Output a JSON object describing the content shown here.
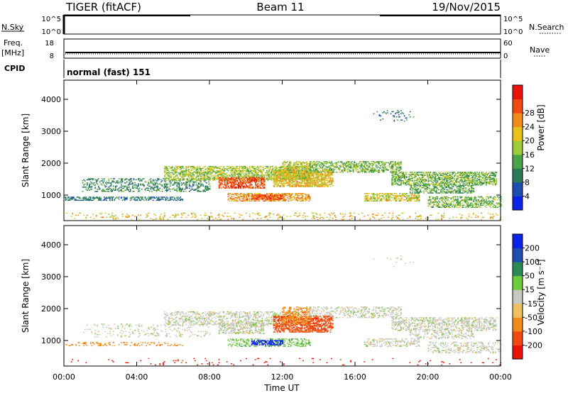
{
  "header": {
    "radar": "TIGER (fitACF)",
    "beam": "Beam 11",
    "date": "19/Nov/2015"
  },
  "top_panels": {
    "nsky_label": "N.Sky",
    "nsearch_label": "N.Search",
    "nsky_ticks": [
      "10^5",
      "10^0"
    ],
    "nsearch_ticks": [
      "10^5",
      "10^0"
    ],
    "freq_label_1": "Freq.",
    "freq_label_2": "[MHz]",
    "freq_ticks": [
      "18",
      "8"
    ],
    "nave_label": "Nave",
    "nave_ticks": [
      "60",
      "0"
    ],
    "cpid_label": "CPID",
    "cpid_text": "normal (fast) 151"
  },
  "colors": {
    "power": [
      "#0b24e8",
      "#1e4fb0",
      "#2c7a55",
      "#4aa24a",
      "#9ccc3a",
      "#e8c21a",
      "#f08a18",
      "#f04a10",
      "#e81408"
    ],
    "velocity": [
      "#e81408",
      "#f04a10",
      "#f08a18",
      "#f0c060",
      "#c8c8c0",
      "#6ccc3a",
      "#2c8a55",
      "#1e4fb0",
      "#0b24e8"
    ]
  },
  "chart_data": [
    {
      "type": "heatmap",
      "quantity": "power",
      "xlabel": "",
      "ylabel": "Slant Range [km]",
      "x_range_hours": [
        0,
        24
      ],
      "ylim": [
        200,
        4600
      ],
      "yticks": [
        "1000",
        "2000",
        "3000",
        "4000"
      ],
      "colorbar_label": "Power [dB]",
      "colorbar_ticks": [
        "4",
        "8",
        "12",
        "16",
        "20",
        "24",
        "28"
      ],
      "colorbar_range": [
        0,
        32
      ],
      "grid": false
    },
    {
      "type": "heatmap",
      "quantity": "velocity",
      "xlabel": "Time UT",
      "ylabel": "Slant Range [km]",
      "x_range_hours": [
        0,
        24
      ],
      "xticks": [
        "00:00",
        "04:00",
        "08:00",
        "12:00",
        "16:00",
        "20:00",
        "00:00"
      ],
      "ylim": [
        200,
        4600
      ],
      "yticks": [
        "1000",
        "2000",
        "3000",
        "4000"
      ],
      "colorbar_label": "Velocity [m s⁻¹]",
      "colorbar_ticks": [
        "-200",
        "-100",
        "-50",
        "-15",
        "15",
        "50",
        "100",
        "200"
      ],
      "grid": false
    }
  ],
  "scatter_regions": [
    {
      "t0": 0.0,
      "t1": 24.0,
      "r0": 220,
      "r1": 420,
      "p": 20,
      "pd": 0.12,
      "v": 0,
      "vd": 0.18
    },
    {
      "t0": 0.0,
      "t1": 6.5,
      "r0": 820,
      "r1": 950,
      "p": 8,
      "pd": 0.55,
      "v": 2,
      "vd": 0.3
    },
    {
      "t0": 1.0,
      "t1": 8.0,
      "r0": 1100,
      "r1": 1500,
      "p": 10,
      "pd": 0.35,
      "v": 4,
      "vd": 0.25
    },
    {
      "t0": 5.5,
      "t1": 13.5,
      "r0": 1450,
      "r1": 1900,
      "p": 16,
      "pd": 0.6,
      "v": 4,
      "vd": 0.6
    },
    {
      "t0": 8.5,
      "t1": 11.0,
      "r0": 1200,
      "r1": 1550,
      "p": 27,
      "pd": 0.7,
      "v": 4,
      "vd": 0.6
    },
    {
      "t0": 9.0,
      "t1": 13.5,
      "r0": 800,
      "r1": 1050,
      "p": 22,
      "pd": 0.6,
      "v": 5,
      "vd": 0.6
    },
    {
      "t0": 10.3,
      "t1": 12.0,
      "r0": 850,
      "r1": 1000,
      "p": 28,
      "pd": 0.75,
      "v": 8,
      "vd": 0.8
    },
    {
      "t0": 11.5,
      "t1": 14.8,
      "r0": 1250,
      "r1": 1750,
      "p": 20,
      "pd": 0.75,
      "v": 1,
      "vd": 0.8
    },
    {
      "t0": 12.0,
      "t1": 13.5,
      "r0": 1500,
      "r1": 2050,
      "p": 18,
      "pd": 0.6,
      "v": 2,
      "vd": 0.7
    },
    {
      "t0": 13.5,
      "t1": 18.5,
      "r0": 1700,
      "r1": 2050,
      "p": 14,
      "pd": 0.55,
      "v": 4,
      "vd": 0.55
    },
    {
      "t0": 16.5,
      "t1": 19.5,
      "r0": 800,
      "r1": 1050,
      "p": 18,
      "pd": 0.6,
      "v": 4,
      "vd": 0.6
    },
    {
      "t0": 18.0,
      "t1": 23.8,
      "r0": 1300,
      "r1": 1700,
      "p": 14,
      "pd": 0.65,
      "v": 4,
      "vd": 0.6
    },
    {
      "t0": 19.0,
      "t1": 22.5,
      "r0": 1050,
      "r1": 1300,
      "p": 12,
      "pd": 0.5,
      "v": 4,
      "vd": 0.5
    },
    {
      "t0": 20.0,
      "t1": 24.0,
      "r0": 600,
      "r1": 950,
      "p": 14,
      "pd": 0.5,
      "v": 4,
      "vd": 0.5
    },
    {
      "t0": 17.0,
      "t1": 19.2,
      "r0": 3300,
      "r1": 3650,
      "p": 8,
      "pd": 0.15,
      "v": 4,
      "vd": 0.2
    }
  ]
}
